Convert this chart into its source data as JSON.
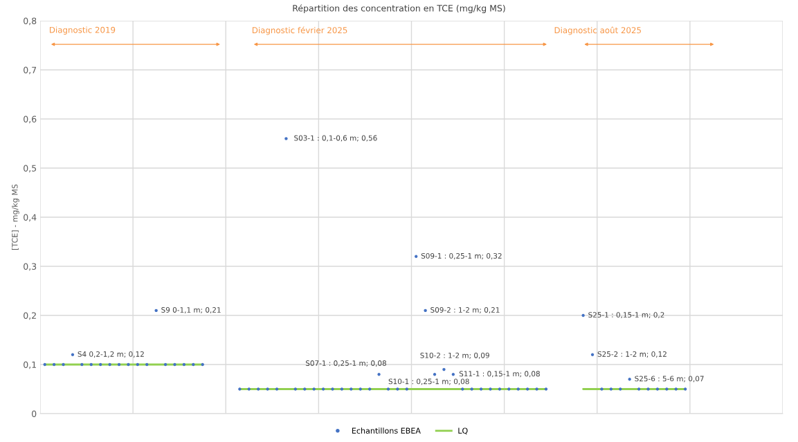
{
  "chart_data": {
    "type": "scatter",
    "title": "Répartition des concentration en TCE (mg/kg MS)",
    "ylabel": "[TCE] - mg/kg MS",
    "categories": [
      null,
      null,
      null,
      null,
      null,
      null,
      null,
      null,
      null,
      null,
      null,
      null,
      null,
      null,
      null,
      null,
      null,
      null,
      null,
      null,
      null,
      null,
      null,
      null,
      null,
      null,
      null,
      null,
      null,
      null,
      null,
      null,
      null,
      null,
      null,
      null,
      null,
      null,
      null,
      null,
      null,
      null,
      null,
      null,
      null,
      null,
      null,
      null,
      null,
      null,
      null,
      null,
      null,
      null,
      null,
      null,
      null,
      null,
      null,
      null,
      null,
      null,
      null,
      null,
      null,
      null,
      null,
      null,
      null,
      null,
      null,
      null,
      null,
      null,
      null,
      null,
      null,
      null,
      null,
      null
    ],
    "ylim": [
      0,
      0.8
    ],
    "yticks": [
      {
        "value": 0,
        "label": "0"
      },
      {
        "value": 0.1,
        "label": "0,1"
      },
      {
        "value": 0.2,
        "label": "0,2"
      },
      {
        "value": 0.3,
        "label": "0,3"
      },
      {
        "value": 0.4,
        "label": "0,4"
      },
      {
        "value": 0.5,
        "label": "0,5"
      },
      {
        "value": 0.6,
        "label": "0,6"
      },
      {
        "value": 0.7,
        "label": "0,7"
      },
      {
        "value": 0.8,
        "label": "0,8"
      }
    ],
    "tick_labels": "y",
    "grid": true,
    "legend": "bottom",
    "series": [
      {
        "name": "Echantillons EBEA",
        "marker": "circle",
        "color": "#4472c4",
        "values": [
          0.1,
          0.1,
          0.1,
          0.12,
          0.1,
          0.1,
          0.1,
          0.1,
          0.1,
          0.1,
          0.1,
          0.1,
          0.21,
          0.1,
          0.1,
          0.1,
          0.1,
          0.1,
          null,
          null,
          null,
          0.05,
          0.05,
          0.05,
          0.05,
          0.05,
          0.56,
          0.05,
          0.05,
          0.05,
          0.05,
          0.05,
          0.05,
          0.05,
          0.05,
          0.05,
          0.08,
          0.05,
          0.05,
          0.05,
          0.32,
          0.21,
          0.08,
          0.09,
          0.08,
          0.05,
          0.05,
          0.05,
          0.05,
          0.05,
          0.05,
          0.05,
          0.05,
          0.05,
          0.05,
          null,
          null,
          null,
          0.2,
          0.12,
          0.05,
          0.05,
          0.05,
          0.07,
          0.05,
          0.05,
          0.05,
          0.05,
          0.05,
          0.05,
          null,
          null,
          null,
          null,
          null,
          null,
          null,
          null,
          null,
          null
        ],
        "value_labels": [
          null,
          null,
          null,
          "S4 0,2-1,2 m; 0,12",
          null,
          null,
          null,
          null,
          null,
          null,
          null,
          null,
          "S9 0-1,1 m; 0,21",
          null,
          null,
          null,
          null,
          null,
          null,
          null,
          null,
          null,
          null,
          null,
          null,
          null,
          "S03-1 : 0,1-0,6 m; 0,56",
          null,
          null,
          null,
          null,
          null,
          null,
          null,
          null,
          null,
          "S07-1 : 0,25-1 m; 0,08",
          null,
          null,
          null,
          "S09-1 : 0,25-1 m; 0,32",
          "S09-2 : 1-2 m; 0,21",
          "S10-1 : 0,25-1 m; 0,08",
          "S10-2 : 1-2 m; 0,09",
          "S11-1 : 0,15-1 m; 0,08",
          null,
          null,
          null,
          null,
          null,
          null,
          null,
          null,
          null,
          null,
          null,
          null,
          null,
          "S25-1 : 0,15-1 m; 0,2",
          "S25-2 : 1-2 m; 0,12",
          null,
          null,
          null,
          "S25-6 : 5-6 m; 0,07",
          null,
          null,
          null,
          null,
          null,
          null,
          null,
          null,
          null,
          null,
          null,
          null,
          null,
          null,
          null,
          null
        ]
      },
      {
        "name": "LQ",
        "type": "line",
        "marker": "none",
        "line_style": "solid",
        "color": "#92d050",
        "values": [
          0.1,
          0.1,
          0.1,
          0.1,
          0.1,
          0.1,
          0.1,
          0.1,
          0.1,
          0.1,
          0.1,
          0.1,
          0.1,
          0.1,
          0.1,
          0.1,
          0.1,
          0.1,
          null,
          null,
          null,
          0.05,
          0.05,
          0.05,
          0.05,
          0.05,
          0.05,
          0.05,
          0.05,
          0.05,
          0.05,
          0.05,
          0.05,
          0.05,
          0.05,
          0.05,
          0.05,
          0.05,
          0.05,
          0.05,
          0.05,
          0.05,
          0.05,
          0.05,
          0.05,
          0.05,
          0.05,
          0.05,
          0.05,
          0.05,
          0.05,
          0.05,
          0.05,
          0.05,
          0.05,
          null,
          null,
          null,
          0.05,
          0.05,
          0.05,
          0.05,
          0.05,
          0.05,
          0.05,
          0.05,
          0.05,
          0.05,
          0.05,
          0.05,
          null,
          null,
          null,
          null,
          null,
          null,
          null,
          null,
          null,
          null
        ]
      }
    ],
    "annotations": [
      "Diagnostic 2019",
      "Diagnostic février 2025",
      "Diagnostic août 2025"
    ]
  }
}
